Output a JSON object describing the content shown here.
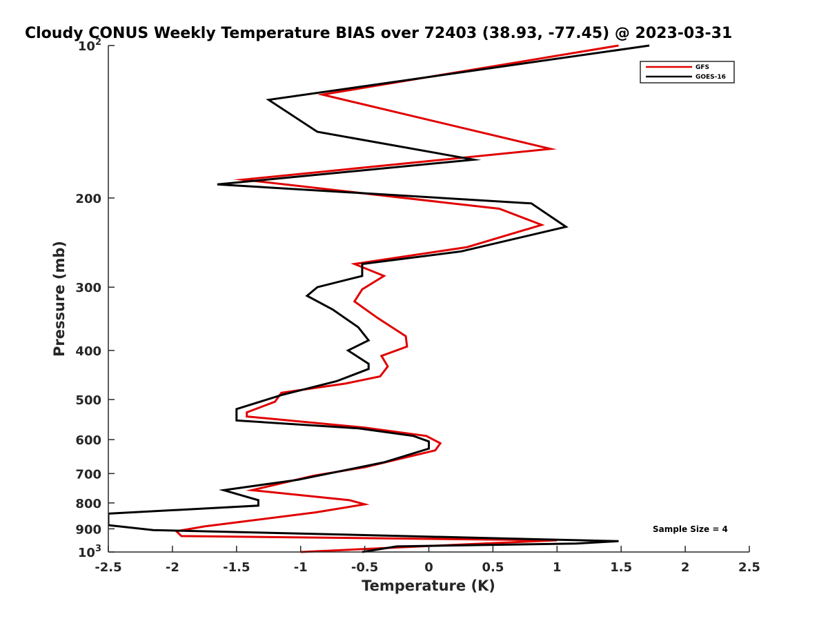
{
  "chart_data": {
    "type": "line",
    "title": "Cloudy CONUS Weekly Temperature BIAS over 72403 (38.93, -77.45) @ 2023-03-31",
    "xlabel": "Temperature (K)",
    "ylabel": "Pressure (mb)",
    "xlim": [
      -2.5,
      2.5
    ],
    "ylim": [
      100,
      1000
    ],
    "y_scale": "log",
    "y_reversed": true,
    "x_ticks": [
      "-2.5",
      "-2",
      "-1.5",
      "-1",
      "-0.5",
      "0",
      "0.5",
      "1",
      "1.5",
      "2",
      "2.5"
    ],
    "x_tick_values": [
      -2.5,
      -2,
      -1.5,
      -1,
      -0.5,
      0,
      0.5,
      1,
      1.5,
      2,
      2.5
    ],
    "y_ticks": [
      {
        "value": 100,
        "base": "10",
        "exp": "2"
      },
      {
        "value": 200,
        "label": "200"
      },
      {
        "value": 300,
        "label": "300"
      },
      {
        "value": 400,
        "label": "400"
      },
      {
        "value": 500,
        "label": "500"
      },
      {
        "value": 600,
        "label": "600"
      },
      {
        "value": 700,
        "label": "700"
      },
      {
        "value": 800,
        "label": "800"
      },
      {
        "value": 900,
        "label": "900"
      },
      {
        "value": 1000,
        "base": "10",
        "exp": "3"
      }
    ],
    "grid": false,
    "legend_position": "top-right",
    "annotation": "Sample Size = 4",
    "series": [
      {
        "name": "GFS",
        "color": "#e00000",
        "points": [
          [
            1.48,
            100
          ],
          [
            -0.83,
            125
          ],
          [
            0.95,
            160
          ],
          [
            -1.45,
            184
          ],
          [
            0.55,
            210
          ],
          [
            0.88,
            226
          ],
          [
            0.3,
            250
          ],
          [
            -0.58,
            270
          ],
          [
            -0.35,
            285
          ],
          [
            -0.52,
            303
          ],
          [
            -0.58,
            320
          ],
          [
            -0.4,
            345
          ],
          [
            -0.18,
            375
          ],
          [
            -0.17,
            393
          ],
          [
            -0.37,
            410
          ],
          [
            -0.32,
            430
          ],
          [
            -0.38,
            450
          ],
          [
            -0.65,
            465
          ],
          [
            -1.15,
            485
          ],
          [
            -1.2,
            505
          ],
          [
            -1.42,
            530
          ],
          [
            -1.42,
            540
          ],
          [
            -0.5,
            568
          ],
          [
            -0.02,
            590
          ],
          [
            0.09,
            610
          ],
          [
            0.05,
            630
          ],
          [
            -0.5,
            680
          ],
          [
            -0.9,
            707
          ],
          [
            -1.38,
            755
          ],
          [
            -0.62,
            790
          ],
          [
            -0.5,
            805
          ],
          [
            -0.88,
            835
          ],
          [
            -1.75,
            890
          ],
          [
            -1.97,
            910
          ],
          [
            -1.93,
            930
          ],
          [
            1.0,
            948
          ],
          [
            0.2,
            968
          ],
          [
            -1.0,
            1000
          ]
        ]
      },
      {
        "name": "GOES-16",
        "color": "#000000",
        "points": [
          [
            1.72,
            100
          ],
          [
            -1.25,
            128
          ],
          [
            -0.87,
            148
          ],
          [
            0.35,
            168
          ],
          [
            -1.65,
            188
          ],
          [
            0.8,
            205
          ],
          [
            1.07,
            228
          ],
          [
            0.25,
            255
          ],
          [
            -0.52,
            270
          ],
          [
            -0.52,
            285
          ],
          [
            -0.87,
            300
          ],
          [
            -0.95,
            312
          ],
          [
            -0.75,
            332
          ],
          [
            -0.55,
            360
          ],
          [
            -0.47,
            382
          ],
          [
            -0.63,
            400
          ],
          [
            -0.47,
            425
          ],
          [
            -0.47,
            435
          ],
          [
            -0.72,
            460
          ],
          [
            -1.15,
            490
          ],
          [
            -1.5,
            522
          ],
          [
            -1.5,
            550
          ],
          [
            -0.55,
            570
          ],
          [
            -0.12,
            590
          ],
          [
            0.0,
            605
          ],
          [
            0.0,
            625
          ],
          [
            -0.35,
            665
          ],
          [
            -1.02,
            720
          ],
          [
            -1.6,
            755
          ],
          [
            -1.33,
            790
          ],
          [
            -1.33,
            810
          ],
          [
            -2.5,
            840
          ],
          [
            -2.5,
            885
          ],
          [
            -2.15,
            905
          ],
          [
            1.48,
            952
          ],
          [
            1.15,
            962
          ],
          [
            -0.25,
            975
          ],
          [
            -0.52,
            1000
          ]
        ]
      }
    ]
  }
}
